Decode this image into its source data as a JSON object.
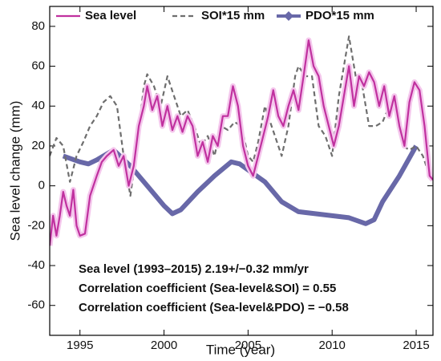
{
  "chart_data": {
    "type": "line",
    "x_label": "Time (year)",
    "y_label": "Sea level change (mm)",
    "xlim": [
      1993.2,
      2016.0
    ],
    "ylim": [
      -75,
      90
    ],
    "xticks": [
      1995,
      2000,
      2005,
      2010,
      2015
    ],
    "yticks": [
      -60,
      -40,
      -20,
      0,
      20,
      40,
      60,
      80
    ],
    "legend": "top",
    "series": [
      {
        "name": "Sea level",
        "color": "#c0319f",
        "style": "solid",
        "x": [
          1993.2,
          1993.4,
          1993.6,
          1993.8,
          1994.0,
          1994.2,
          1994.4,
          1994.6,
          1994.8,
          1995.0,
          1995.3,
          1995.6,
          1996.0,
          1996.3,
          1996.6,
          1997.0,
          1997.3,
          1997.6,
          1997.9,
          1998.2,
          1998.5,
          1998.8,
          1999.0,
          1999.3,
          1999.6,
          1999.9,
          2000.2,
          2000.5,
          2000.8,
          2001.1,
          2001.4,
          2001.7,
          2002.0,
          2002.3,
          2002.6,
          2002.9,
          2003.2,
          2003.5,
          2003.8,
          2004.1,
          2004.4,
          2004.7,
          2005.0,
          2005.3,
          2005.6,
          2005.9,
          2006.2,
          2006.5,
          2006.8,
          2007.1,
          2007.4,
          2007.7,
          2008.0,
          2008.3,
          2008.6,
          2008.9,
          2009.2,
          2009.5,
          2009.8,
          2010.1,
          2010.4,
          2010.7,
          2011.0,
          2011.3,
          2011.6,
          2011.9,
          2012.2,
          2012.5,
          2012.8,
          2013.1,
          2013.4,
          2013.7,
          2014.0,
          2014.3,
          2014.6,
          2014.9,
          2015.2,
          2015.5,
          2015.8,
          2016.0
        ],
        "values": [
          -30,
          -15,
          -25,
          -15,
          -3,
          -10,
          -15,
          -2,
          -20,
          -25,
          -24,
          -5,
          5,
          12,
          15,
          18,
          10,
          15,
          0,
          10,
          30,
          40,
          50,
          38,
          45,
          30,
          40,
          28,
          35,
          27,
          35,
          30,
          15,
          22,
          12,
          25,
          20,
          35,
          35,
          50,
          40,
          20,
          10,
          5,
          15,
          25,
          35,
          48,
          35,
          30,
          40,
          48,
          38,
          55,
          73,
          60,
          55,
          40,
          30,
          20,
          30,
          45,
          60,
          40,
          55,
          50,
          57,
          52,
          40,
          50,
          35,
          45,
          30,
          20,
          42,
          52,
          48,
          30,
          5,
          3
        ]
      },
      {
        "name": "SOI*15 mm",
        "color": "#6e6e6e",
        "style": "dashed",
        "x": [
          1993.2,
          1993.6,
          1994.0,
          1994.4,
          1994.8,
          1995.2,
          1995.6,
          1996.0,
          1996.4,
          1996.8,
          1997.2,
          1997.6,
          1998.0,
          1998.4,
          1998.8,
          1999.0,
          1999.4,
          1999.8,
          2000.2,
          2000.6,
          2001.0,
          2001.4,
          2001.8,
          2002.2,
          2002.6,
          2003.0,
          2003.4,
          2003.8,
          2004.2,
          2004.6,
          2005.0,
          2005.3,
          2005.6,
          2006.0,
          2006.4,
          2006.8,
          2007.0,
          2007.4,
          2007.8,
          2008.0,
          2008.4,
          2008.8,
          2009.2,
          2009.6,
          2010.0,
          2010.4,
          2010.8,
          2011.0,
          2011.4,
          2011.8,
          2012.2,
          2012.6,
          2013.0,
          2013.4,
          2013.8,
          2014.2,
          2014.6,
          2015.0,
          2015.4,
          2015.8
        ],
        "values": [
          15,
          24,
          20,
          2,
          15,
          22,
          30,
          35,
          42,
          45,
          40,
          15,
          -5,
          20,
          50,
          56,
          50,
          40,
          55,
          45,
          35,
          38,
          30,
          20,
          25,
          15,
          30,
          28,
          32,
          30,
          15,
          12,
          22,
          40,
          30,
          20,
          15,
          30,
          55,
          60,
          55,
          55,
          30,
          25,
          15,
          45,
          65,
          75,
          55,
          50,
          30,
          30,
          32,
          40,
          45,
          20,
          18,
          20,
          15,
          5
        ]
      },
      {
        "name": "PDO*15 mm",
        "color": "#6868a8",
        "style": "thick",
        "x": [
          1994.0,
          1995.0,
          1995.5,
          1996.0,
          1997.0,
          1998.0,
          1999.0,
          2000.0,
          2000.5,
          2001.0,
          2002.0,
          2003.0,
          2004.0,
          2004.5,
          2005.0,
          2006.0,
          2007.0,
          2008.0,
          2009.0,
          2010.0,
          2011.0,
          2012.0,
          2012.5,
          2013.0,
          2014.0,
          2015.0
        ],
        "values": [
          15,
          12,
          11,
          13,
          18,
          10,
          0,
          -10,
          -14,
          -12,
          -3,
          5,
          12,
          11,
          8,
          2,
          -8,
          -13,
          -14,
          -15,
          -16,
          -19,
          -17,
          -8,
          5,
          20
        ]
      }
    ],
    "annotations": [
      {
        "text": "Sea level (1993–2015) 2.19+/−0.32 mm/yr",
        "color": "#c0319f"
      },
      {
        "text": "Correlation coefficient (Sea-level&SOI)  = 0.55",
        "color": "#808080"
      },
      {
        "text": "Correlation coefficient (Sea-level&PDO) = −0.58",
        "color": "#6466a6"
      }
    ]
  }
}
